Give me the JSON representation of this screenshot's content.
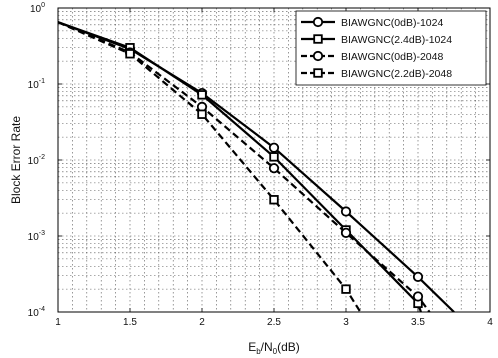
{
  "chart_data": {
    "type": "line",
    "xlabel": "E",
    "xlabel_sub1": "b",
    "xlabel_mid": "/N",
    "xlabel_sub2": "0",
    "xlabel_tail": "(dB)",
    "ylabel": "Block Error Rate",
    "xlim": [
      1,
      4
    ],
    "ylim": [
      0.0001,
      1
    ],
    "yscale": "log",
    "grid": true,
    "legend_position": "top-right",
    "x_ticks": [
      "1",
      "1.5",
      "2",
      "2.5",
      "3",
      "3.5",
      "4"
    ],
    "y_ticks": [
      {
        "base": "10",
        "exp": "0"
      },
      {
        "base": "10",
        "exp": "-1"
      },
      {
        "base": "10",
        "exp": "-2"
      },
      {
        "base": "10",
        "exp": "-3"
      },
      {
        "base": "10",
        "exp": "-4"
      }
    ],
    "series": [
      {
        "name": "BIAWGNC(0dB)-1024",
        "line_style": "solid",
        "marker": "circle",
        "curve": [
          [
            1.0,
            0.65
          ],
          [
            1.5,
            0.29
          ],
          [
            2.0,
            0.076
          ],
          [
            2.5,
            0.0145
          ],
          [
            3.0,
            0.0021
          ],
          [
            3.5,
            0.00029
          ],
          [
            3.75,
            0.0001
          ]
        ],
        "markers": [
          [
            1.5,
            0.29
          ],
          [
            2.0,
            0.076
          ],
          [
            2.5,
            0.0145
          ],
          [
            3.0,
            0.0021
          ],
          [
            3.5,
            0.00029
          ]
        ]
      },
      {
        "name": "BIAWGNC(2.4dB)-1024",
        "line_style": "solid",
        "marker": "square",
        "curve": [
          [
            1.0,
            0.65
          ],
          [
            1.5,
            0.3
          ],
          [
            2.0,
            0.072
          ],
          [
            2.5,
            0.011
          ],
          [
            3.0,
            0.0012
          ],
          [
            3.5,
            0.00013
          ],
          [
            3.52,
            0.0001
          ]
        ],
        "markers": [
          [
            1.5,
            0.3
          ],
          [
            2.0,
            0.072
          ],
          [
            2.5,
            0.011
          ],
          [
            3.0,
            0.0012
          ],
          [
            3.5,
            0.00013
          ]
        ]
      },
      {
        "name": "BIAWGNC(0dB)-2048",
        "line_style": "dashed",
        "marker": "circle",
        "curve": [
          [
            1.0,
            0.65
          ],
          [
            1.5,
            0.26
          ],
          [
            2.0,
            0.05
          ],
          [
            2.5,
            0.0078
          ],
          [
            3.0,
            0.0011
          ],
          [
            3.5,
            0.00016
          ],
          [
            3.58,
            0.0001
          ]
        ],
        "markers": [
          [
            1.5,
            0.26
          ],
          [
            2.0,
            0.05
          ],
          [
            2.5,
            0.0078
          ],
          [
            3.0,
            0.0011
          ],
          [
            3.5,
            0.00016
          ]
        ]
      },
      {
        "name": "BIAWGNC(2.2dB)-2048",
        "line_style": "dashed",
        "marker": "square",
        "curve": [
          [
            1.0,
            0.65
          ],
          [
            1.5,
            0.25
          ],
          [
            2.0,
            0.04
          ],
          [
            2.5,
            0.003
          ],
          [
            3.0,
            0.0002
          ],
          [
            3.1,
            0.0001
          ]
        ],
        "markers": [
          [
            1.5,
            0.25
          ],
          [
            2.0,
            0.04
          ],
          [
            2.5,
            0.003
          ],
          [
            3.0,
            0.0002
          ]
        ]
      }
    ]
  }
}
